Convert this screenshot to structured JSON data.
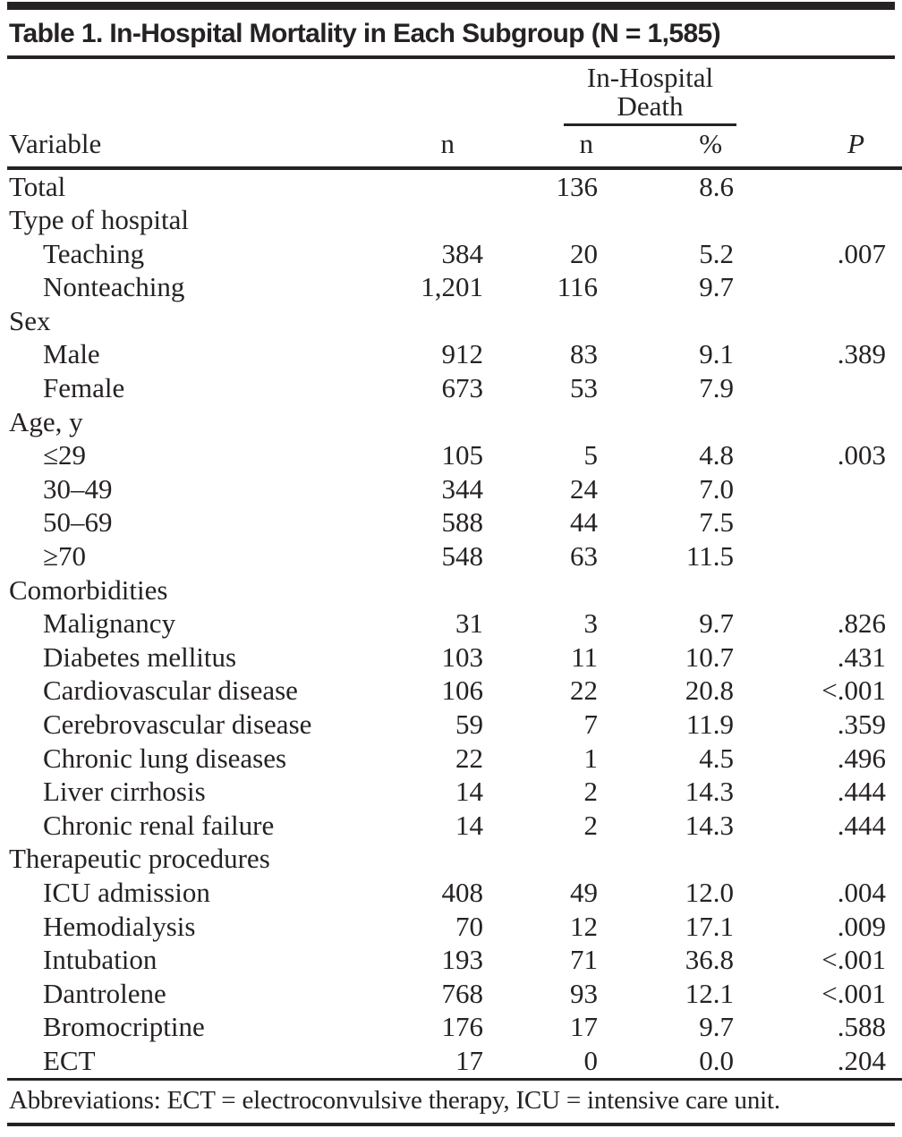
{
  "colors": {
    "ink": "#262223"
  },
  "table": {
    "title": "Table 1. In-Hospital Mortality in Each Subgroup (N = 1,585)",
    "spanner": {
      "line1": "In-Hospital",
      "line2": "Death"
    },
    "columns": {
      "variable": "Variable",
      "n": "n",
      "death_n": "n",
      "death_pct": "%",
      "p": "P"
    },
    "rows": [
      {
        "label": "Total",
        "indent": false,
        "n": "",
        "death_n": "136",
        "death_pct": "8.6",
        "p": ""
      },
      {
        "label": "Type of hospital",
        "indent": false,
        "n": "",
        "death_n": "",
        "death_pct": "",
        "p": ""
      },
      {
        "label": "Teaching",
        "indent": true,
        "n": "384",
        "death_n": "20",
        "death_pct": "5.2",
        "p": ".007"
      },
      {
        "label": "Nonteaching",
        "indent": true,
        "n": "1,201",
        "death_n": "116",
        "death_pct": "9.7",
        "p": ""
      },
      {
        "label": "Sex",
        "indent": false,
        "n": "",
        "death_n": "",
        "death_pct": "",
        "p": ""
      },
      {
        "label": "Male",
        "indent": true,
        "n": "912",
        "death_n": "83",
        "death_pct": "9.1",
        "p": ".389"
      },
      {
        "label": "Female",
        "indent": true,
        "n": "673",
        "death_n": "53",
        "death_pct": "7.9",
        "p": ""
      },
      {
        "label": "Age, y",
        "indent": false,
        "n": "",
        "death_n": "",
        "death_pct": "",
        "p": ""
      },
      {
        "label": "≤29",
        "indent": true,
        "n": "105",
        "death_n": "5",
        "death_pct": "4.8",
        "p": ".003"
      },
      {
        "label": "30–49",
        "indent": true,
        "n": "344",
        "death_n": "24",
        "death_pct": "7.0",
        "p": ""
      },
      {
        "label": "50–69",
        "indent": true,
        "n": "588",
        "death_n": "44",
        "death_pct": "7.5",
        "p": ""
      },
      {
        "label": "≥70",
        "indent": true,
        "n": "548",
        "death_n": "63",
        "death_pct": "11.5",
        "p": ""
      },
      {
        "label": "Comorbidities",
        "indent": false,
        "n": "",
        "death_n": "",
        "death_pct": "",
        "p": ""
      },
      {
        "label": "Malignancy",
        "indent": true,
        "n": "31",
        "death_n": "3",
        "death_pct": "9.7",
        "p": ".826"
      },
      {
        "label": "Diabetes mellitus",
        "indent": true,
        "n": "103",
        "death_n": "11",
        "death_pct": "10.7",
        "p": ".431"
      },
      {
        "label": "Cardiovascular disease",
        "indent": true,
        "n": "106",
        "death_n": "22",
        "death_pct": "20.8",
        "p": "<.001"
      },
      {
        "label": "Cerebrovascular disease",
        "indent": true,
        "n": "59",
        "death_n": "7",
        "death_pct": "11.9",
        "p": ".359"
      },
      {
        "label": "Chronic lung diseases",
        "indent": true,
        "n": "22",
        "death_n": "1",
        "death_pct": "4.5",
        "p": ".496"
      },
      {
        "label": "Liver cirrhosis",
        "indent": true,
        "n": "14",
        "death_n": "2",
        "death_pct": "14.3",
        "p": ".444"
      },
      {
        "label": "Chronic renal failure",
        "indent": true,
        "n": "14",
        "death_n": "2",
        "death_pct": "14.3",
        "p": ".444"
      },
      {
        "label": "Therapeutic procedures",
        "indent": false,
        "n": "",
        "death_n": "",
        "death_pct": "",
        "p": ""
      },
      {
        "label": "ICU admission",
        "indent": true,
        "n": "408",
        "death_n": "49",
        "death_pct": "12.0",
        "p": ".004"
      },
      {
        "label": "Hemodialysis",
        "indent": true,
        "n": "70",
        "death_n": "12",
        "death_pct": "17.1",
        "p": ".009"
      },
      {
        "label": "Intubation",
        "indent": true,
        "n": "193",
        "death_n": "71",
        "death_pct": "36.8",
        "p": "<.001"
      },
      {
        "label": "Dantrolene",
        "indent": true,
        "n": "768",
        "death_n": "93",
        "death_pct": "12.1",
        "p": "<.001"
      },
      {
        "label": "Bromocriptine",
        "indent": true,
        "n": "176",
        "death_n": "17",
        "death_pct": "9.7",
        "p": ".588"
      },
      {
        "label": "ECT",
        "indent": true,
        "n": "17",
        "death_n": "0",
        "death_pct": "0.0",
        "p": ".204"
      }
    ],
    "footnote": "Abbreviations: ECT = electroconvulsive therapy, ICU = intensive care unit."
  }
}
